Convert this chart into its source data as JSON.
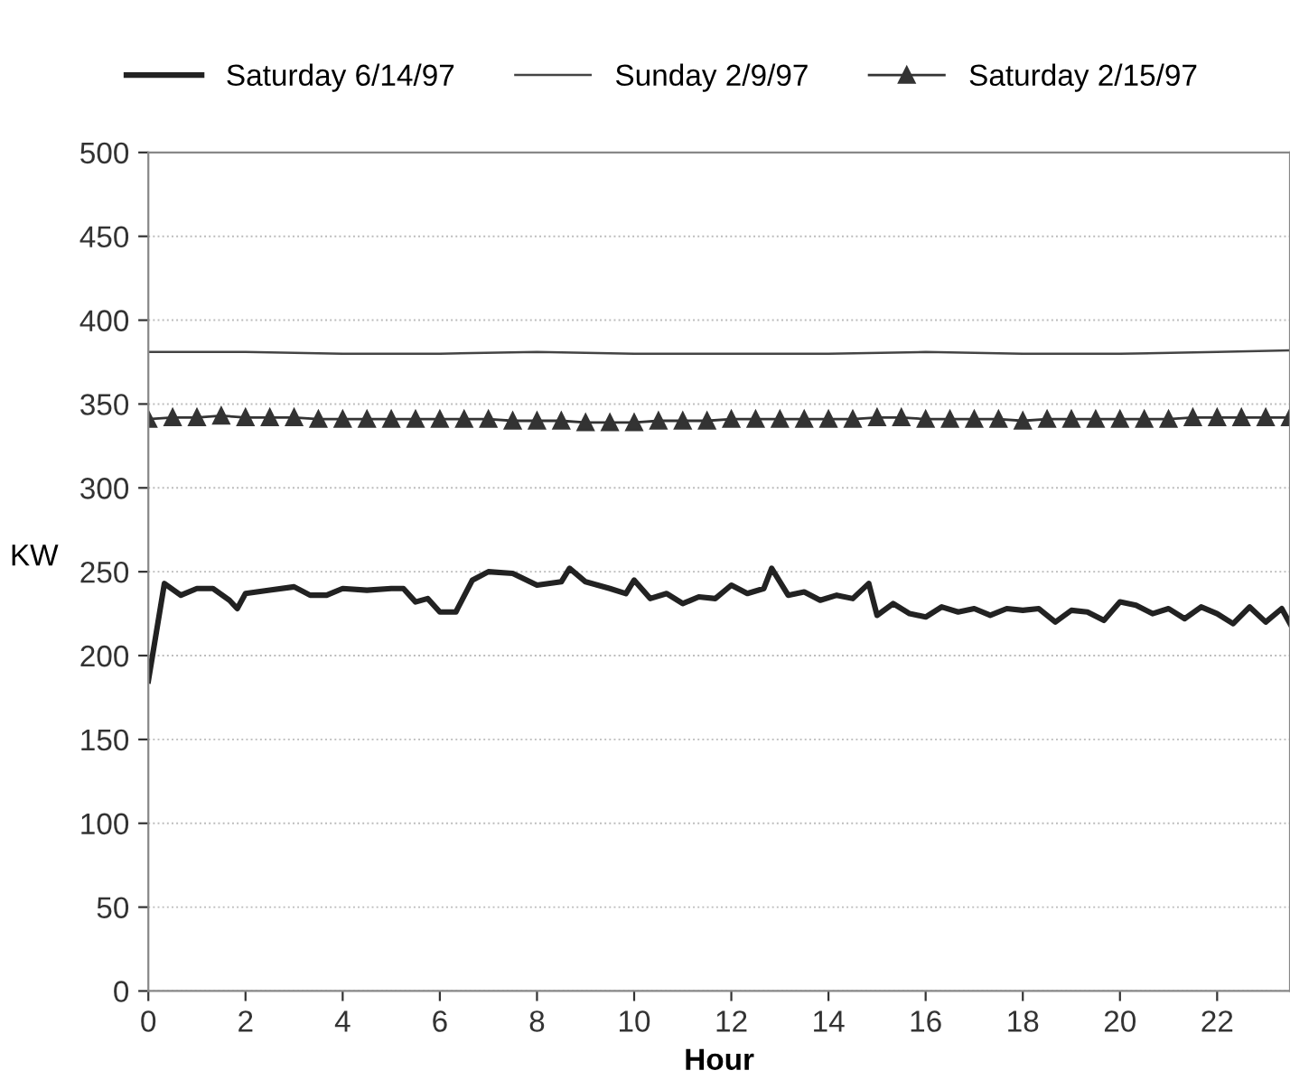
{
  "chart_data": {
    "type": "line",
    "xlabel": "Hour",
    "ylabel": "KW",
    "xlim": [
      0,
      23.5
    ],
    "xticks": [
      0,
      2,
      4,
      6,
      8,
      10,
      12,
      14,
      16,
      18,
      20,
      22
    ],
    "ylim": [
      0,
      500
    ],
    "yticks": [
      0,
      50,
      100,
      150,
      200,
      250,
      300,
      350,
      400,
      450,
      500
    ],
    "grid": "y",
    "legend": "top",
    "series": [
      {
        "name": "Saturday 6/14/97",
        "color": "#222222",
        "x": [
          0,
          0.33,
          0.67,
          1,
          1.33,
          1.67,
          1.83,
          2,
          2.5,
          3,
          3.33,
          3.67,
          4,
          4.5,
          5,
          5.25,
          5.5,
          5.75,
          6,
          6.33,
          6.67,
          7,
          7.5,
          8,
          8.5,
          8.67,
          9,
          9.5,
          9.83,
          10,
          10.33,
          10.67,
          11,
          11.33,
          11.67,
          12,
          12.33,
          12.67,
          12.83,
          13.17,
          13.5,
          13.83,
          14.17,
          14.5,
          14.83,
          15,
          15.33,
          15.67,
          16,
          16.33,
          16.67,
          17,
          17.33,
          17.67,
          18,
          18.33,
          18.67,
          19,
          19.33,
          19.67,
          20,
          20.33,
          20.67,
          21,
          21.33,
          21.67,
          22,
          22.33,
          22.67,
          23,
          23.33,
          23.5
        ],
        "values": [
          185,
          243,
          236,
          240,
          240,
          233,
          228,
          237,
          239,
          241,
          236,
          236,
          240,
          239,
          240,
          240,
          232,
          234,
          226,
          226,
          245,
          250,
          249,
          242,
          244,
          252,
          244,
          240,
          237,
          245,
          234,
          237,
          231,
          235,
          234,
          242,
          237,
          240,
          252,
          236,
          238,
          233,
          236,
          234,
          243,
          224,
          231,
          225,
          223,
          229,
          226,
          228,
          224,
          228,
          227,
          228,
          220,
          227,
          226,
          221,
          232,
          230,
          225,
          228,
          222,
          229,
          225,
          219,
          229,
          220,
          228,
          219
        ],
        "marker": "none"
      },
      {
        "name": "Sunday 2/9/97",
        "color": "#444444",
        "x": [
          0,
          2,
          4,
          6,
          8,
          10,
          12,
          14,
          16,
          18,
          20,
          22,
          23.5
        ],
        "values": [
          381,
          381,
          380,
          380,
          381,
          380,
          380,
          380,
          381,
          380,
          380,
          381,
          382
        ],
        "marker": "none"
      },
      {
        "name": "Saturday 2/15/97",
        "color": "#333333",
        "x": [
          0,
          0.5,
          1,
          1.5,
          2,
          2.5,
          3,
          3.5,
          4,
          4.5,
          5,
          5.5,
          6,
          6.5,
          7,
          7.5,
          8,
          8.5,
          9,
          9.5,
          10,
          10.5,
          11,
          11.5,
          12,
          12.5,
          13,
          13.5,
          14,
          14.5,
          15,
          15.5,
          16,
          16.5,
          17,
          17.5,
          18,
          18.5,
          19,
          19.5,
          20,
          20.5,
          21,
          21.5,
          22,
          22.5,
          23,
          23.5
        ],
        "values": [
          341,
          342,
          342,
          343,
          342,
          342,
          342,
          341,
          341,
          341,
          341,
          341,
          341,
          341,
          341,
          340,
          340,
          340,
          339,
          339,
          339,
          340,
          340,
          340,
          341,
          341,
          341,
          341,
          341,
          341,
          342,
          342,
          341,
          341,
          341,
          341,
          340,
          341,
          341,
          341,
          341,
          341,
          341,
          342,
          342,
          342,
          342,
          342
        ],
        "marker": "triangle"
      }
    ]
  }
}
